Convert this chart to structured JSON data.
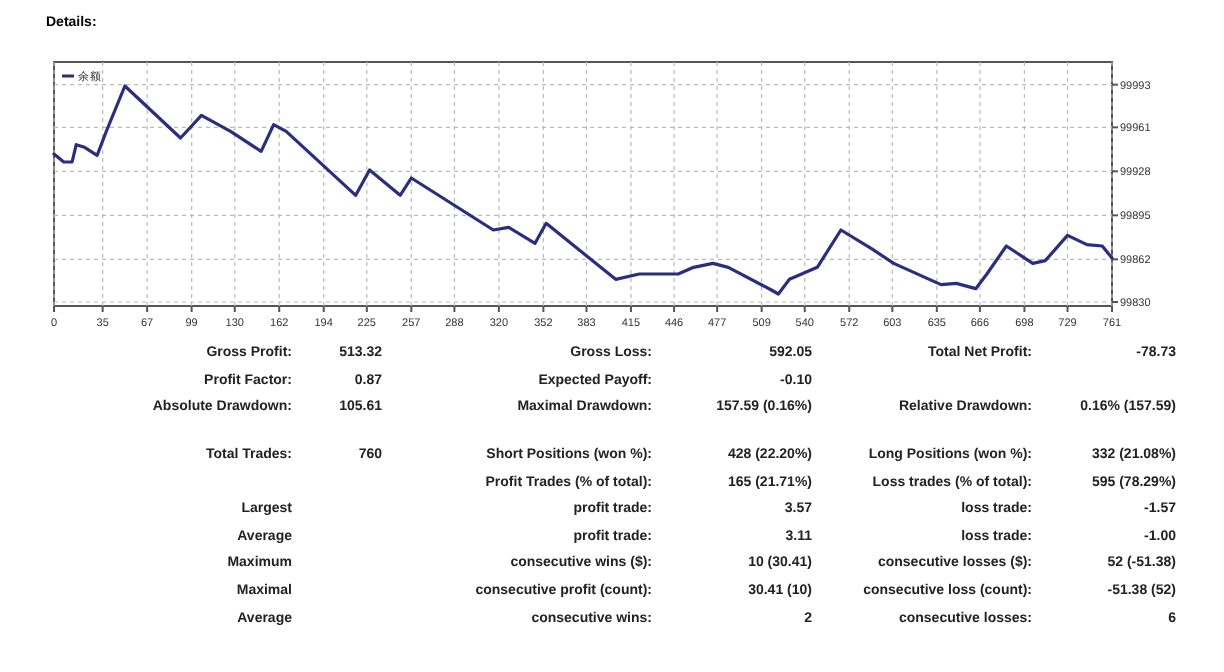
{
  "chart_data": [
    {
      "type": "line",
      "title": "Details:",
      "xlim": [
        0,
        761
      ],
      "xticks": [
        0,
        35,
        67,
        99,
        130,
        162,
        194,
        225,
        257,
        288,
        320,
        352,
        383,
        415,
        446,
        477,
        509,
        540,
        572,
        603,
        635,
        666,
        698,
        729,
        761
      ],
      "ylim": [
        99827,
        100010
      ],
      "yticks": [
        99830,
        99862,
        99895,
        99928,
        99961,
        99993
      ],
      "grid": true,
      "legend": "top left",
      "line_style": "solid",
      "marker": "none",
      "series": [
        {
          "name": "余额",
          "color": "#2b2d7e",
          "x": [
            0,
            7,
            13,
            16,
            22,
            31,
            38,
            51,
            91,
            99,
            106,
            127,
            149,
            158,
            167,
            217,
            227,
            249,
            257,
            316,
            327,
            346,
            354,
            404,
            421,
            449,
            460,
            474,
            485,
            516,
            521,
            529,
            549,
            566,
            588,
            604,
            638,
            649,
            663,
            671,
            685,
            704,
            713,
            729,
            743,
            754,
            761
          ],
          "values": [
            99941,
            99935,
            99935,
            99948,
            99946,
            99940,
            99959,
            99992,
            99953,
            99962,
            99970,
            99958,
            99943,
            99963,
            99958,
            99910,
            99929,
            99910,
            99923,
            99884,
            99886,
            99874,
            99889,
            99847,
            99851,
            99851,
            99856,
            99859,
            99856,
            99839,
            99836,
            99847,
            99856,
            99884,
            99870,
            99859,
            99843,
            99844,
            99840,
            99851,
            99872,
            99859,
            99861,
            99880,
            99873,
            99872,
            99863
          ]
        }
      ]
    },
    {
      "type": "other",
      "annotations": [
        "Gross Profit:",
        "513.32",
        "Gross Loss:",
        "592.05",
        "Total Net Profit:",
        "-78.73",
        "Profit Factor:",
        "0.87",
        "Expected Payoff:",
        "-0.10",
        "Absolute Drawdown:",
        "105.61",
        "Maximal Drawdown:",
        "157.59 (0.16%)",
        "Relative Drawdown:",
        "0.16% (157.59)",
        "Total Trades:",
        "760",
        "Short Positions (won %):",
        "428 (22.20%)",
        "Long Positions (won %):",
        "332 (21.08%)",
        "Profit Trades (% of total):",
        "165 (21.71%)",
        "Loss trades (% of total):",
        "595 (78.29%)",
        "Largest",
        "profit trade:",
        "3.57",
        "loss trade:",
        "-1.57",
        "Average",
        "profit trade:",
        "3.11",
        "loss trade:",
        "-1.00",
        "Maximum",
        "consecutive wins ($):",
        "10 (30.41)",
        "consecutive losses ($):",
        "52 (-51.38)",
        "Maximal",
        "consecutive profit (count):",
        "30.41 (10)",
        "consecutive loss (count):",
        "-51.38 (52)",
        "Average",
        "consecutive wins:",
        "2",
        "consecutive losses:",
        "6"
      ]
    }
  ]
}
